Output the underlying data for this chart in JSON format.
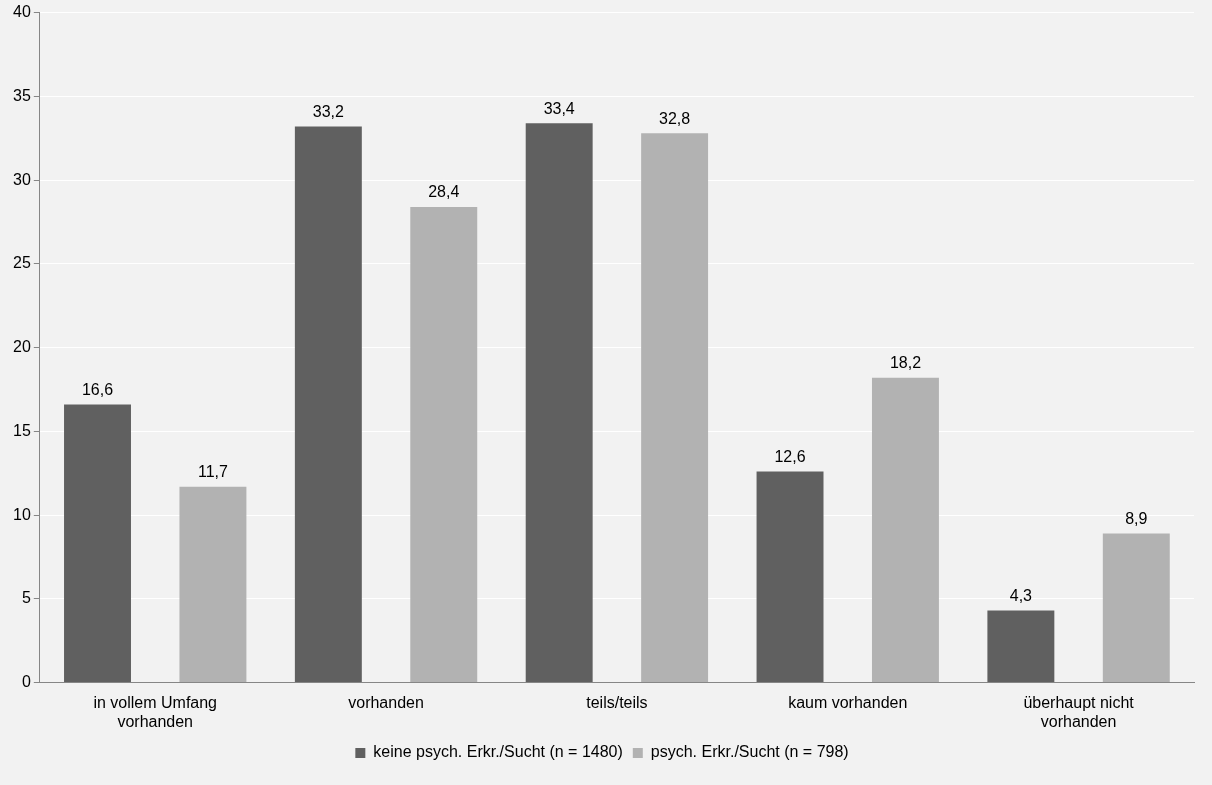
{
  "chart_data": {
    "type": "bar",
    "categories": [
      "in vollem Umfang vorhanden",
      "vorhanden",
      "teils/teils",
      "kaum vorhanden",
      "überhaupt nicht vorhanden"
    ],
    "series": [
      {
        "name": "keine psych. Erkr./Sucht (n = 1480)",
        "color": "#606060",
        "values": [
          16.6,
          33.2,
          33.4,
          12.6,
          4.3
        ],
        "value_labels": [
          "16,6",
          "33,2",
          "33,4",
          "12,6",
          "4,3"
        ]
      },
      {
        "name": "psych. Erkr./Sucht (n = 798)",
        "color": "#b2b2b2",
        "values": [
          11.7,
          28.4,
          32.8,
          18.2,
          8.9
        ],
        "value_labels": [
          "11,7",
          "28,4",
          "32,8",
          "18,2",
          "8,9"
        ]
      }
    ],
    "ylim": [
      0,
      40
    ],
    "yticks": [
      0,
      5,
      10,
      15,
      20,
      25,
      30,
      35,
      40
    ],
    "grid": "y",
    "legend": "bottom"
  }
}
